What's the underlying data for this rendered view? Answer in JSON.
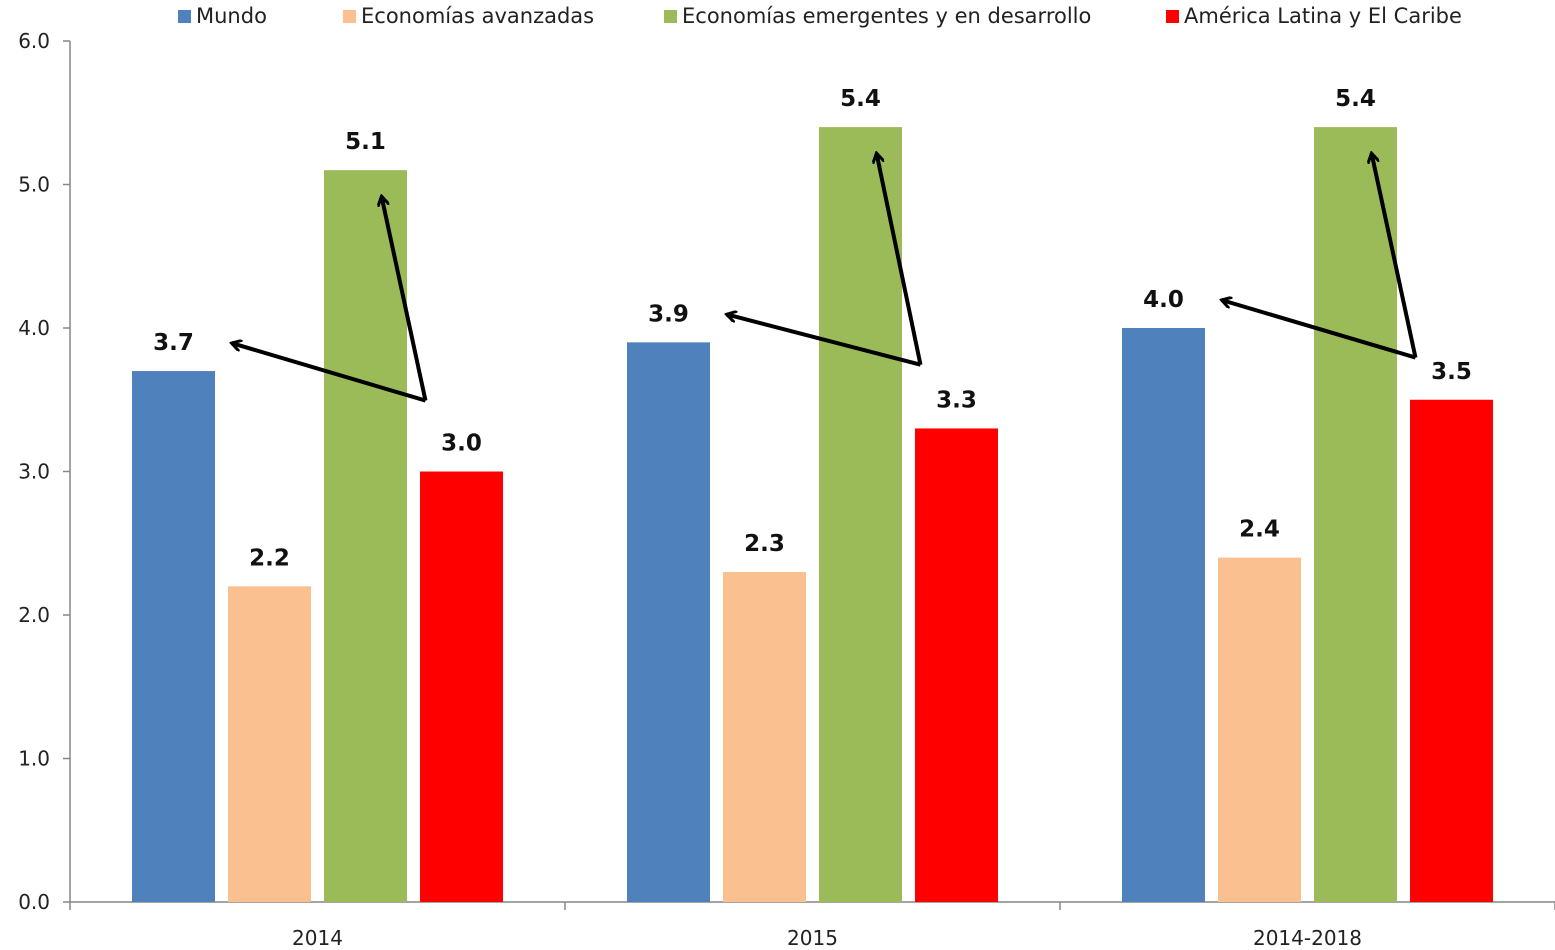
{
  "chart_data": {
    "type": "bar",
    "categories": [
      "2014",
      "2015",
      "2014-2018"
    ],
    "series": [
      {
        "name": "Mundo",
        "color": "#4F81BD",
        "values": [
          3.7,
          3.9,
          4.0
        ]
      },
      {
        "name": "Economías avanzadas",
        "color": "#FAC090",
        "values": [
          2.2,
          2.3,
          2.4
        ]
      },
      {
        "name": "Economías emergentes y en desarrollo",
        "color": "#9BBB59",
        "values": [
          5.1,
          5.4,
          5.4
        ]
      },
      {
        "name": "América Latina y El Caribe",
        "color": "#FF0000",
        "values": [
          3.0,
          3.3,
          3.5
        ]
      }
    ],
    "data_labels": [
      [
        "3.7",
        "2.2",
        "5.1",
        "3.0"
      ],
      [
        "3.9",
        "2.3",
        "5.4",
        "3.3"
      ],
      [
        "4.0",
        "2.4",
        "5.4",
        "3.5"
      ]
    ],
    "y_ticks": [
      "0.0",
      "1.0",
      "2.0",
      "3.0",
      "4.0",
      "5.0",
      "6.0"
    ],
    "ylim": [
      0,
      6
    ],
    "legend_position": "top",
    "grid": false,
    "annotations": "Arrows from between the green bar and the Mundo bar pointing to both bar tops in each category"
  }
}
